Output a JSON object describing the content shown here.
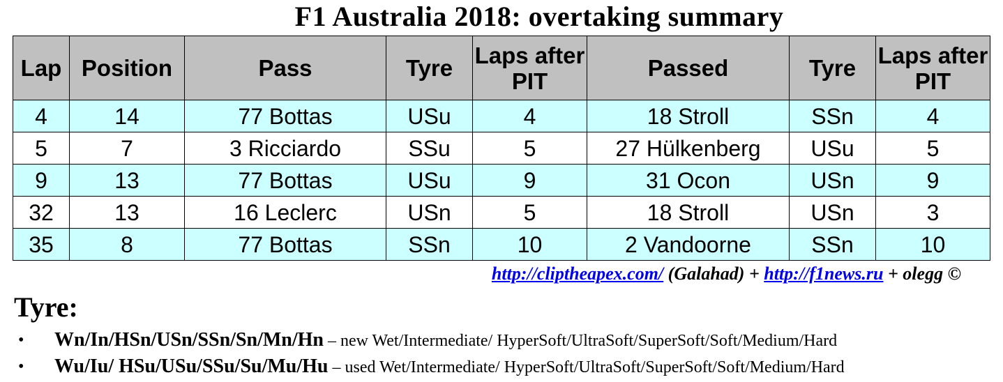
{
  "title": "F1 Australia 2018: overtaking summary",
  "table": {
    "headers": [
      "Lap",
      "Position",
      "Pass",
      "Tyre",
      "Laps after PIT",
      "Passed",
      "Tyre",
      "Laps after PIT"
    ],
    "rows": [
      [
        "4",
        "14",
        "77 Bottas",
        "USu",
        "4",
        "18 Stroll",
        "SSn",
        "4"
      ],
      [
        "5",
        "7",
        "3 Ricciardo",
        "SSu",
        "5",
        "27 Hülkenberg",
        "USu",
        "5"
      ],
      [
        "9",
        "13",
        "77 Bottas",
        "USu",
        "9",
        "31 Ocon",
        "USn",
        "9"
      ],
      [
        "32",
        "13",
        "16 Leclerc",
        "USn",
        "5",
        "18 Stroll",
        "USn",
        "3"
      ],
      [
        "35",
        "8",
        "77 Bottas",
        "SSn",
        "10",
        "2 Vandoorne",
        "SSn",
        "10"
      ]
    ],
    "colors": {
      "header_bg": "#c0c0c0",
      "row_alt_bg": "#ccffff",
      "row_bg": "#ffffff"
    }
  },
  "credits": {
    "link1": "http://cliptheapex.com/",
    "text1": " (Galahad) + ",
    "link2": "http://f1news.ru",
    "text2": " + olegg ©",
    "link_color": "#0000ee"
  },
  "legend": {
    "title": "Tyre:",
    "bullet": "•",
    "items": [
      {
        "codes": "Wn/In/HSn/USn/SSn/Sn/Mn/Hn",
        "desc": " – new Wet/Intermediate/ HyperSoft/UltraSoft/SuperSoft/Soft/Medium/Hard"
      },
      {
        "codes": "Wu/Iu/ HSu/USu/SSu/Su/Mu/Hu",
        "desc": " – used Wet/Intermediate/ HyperSoft/UltraSoft/SuperSoft/Soft/Medium/Hard"
      }
    ]
  }
}
